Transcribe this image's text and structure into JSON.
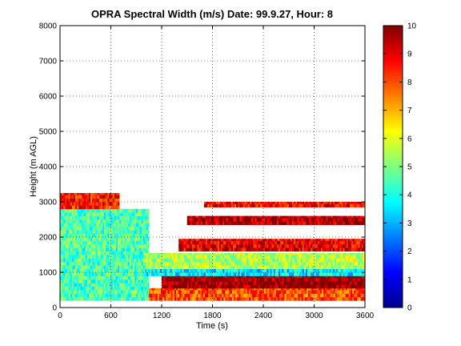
{
  "chart_data": {
    "type": "heatmap",
    "title": "OPRA Spectral Width (m/s)  Date: 99.9.27, Hour: 8",
    "xlabel": "Time (s)",
    "ylabel": "Height (m AGL)",
    "xlim": [
      0,
      3600
    ],
    "ylim": [
      0,
      8000
    ],
    "x_ticks": [
      "0",
      "600",
      "1200",
      "1800",
      "2400",
      "3000",
      "3600"
    ],
    "y_ticks": [
      "0",
      "1000",
      "2000",
      "3000",
      "4000",
      "5000",
      "6000",
      "7000",
      "8000"
    ],
    "grid": true,
    "colormap": "jet",
    "colorbar": {
      "range": [
        0,
        10
      ],
      "ticks": [
        "0",
        "1",
        "2",
        "3",
        "4",
        "5",
        "6",
        "7",
        "8",
        "9",
        "10"
      ]
    },
    "regions": [
      {
        "x": [
          0,
          1050
        ],
        "y": [
          200,
          2800
        ],
        "value": 4.5
      },
      {
        "x": [
          0,
          700
        ],
        "y": [
          2800,
          3250
        ],
        "value": 8.5
      },
      {
        "x": [
          1050,
          3600
        ],
        "y": [
          200,
          550
        ],
        "value": 8
      },
      {
        "x": [
          1200,
          3600
        ],
        "y": [
          550,
          900
        ],
        "value": 9.8
      },
      {
        "x": [
          1000,
          3600
        ],
        "y": [
          900,
          1100
        ],
        "value": 3.5
      },
      {
        "x": [
          1000,
          3600
        ],
        "y": [
          1100,
          1550
        ],
        "value": 5.5
      },
      {
        "x": [
          1400,
          3600
        ],
        "y": [
          1600,
          1950
        ],
        "value": 9
      },
      {
        "x": [
          1500,
          3600
        ],
        "y": [
          2350,
          2600
        ],
        "value": 9.5
      },
      {
        "x": [
          1700,
          3600
        ],
        "y": [
          2850,
          3000
        ],
        "value": 8.8
      }
    ]
  }
}
